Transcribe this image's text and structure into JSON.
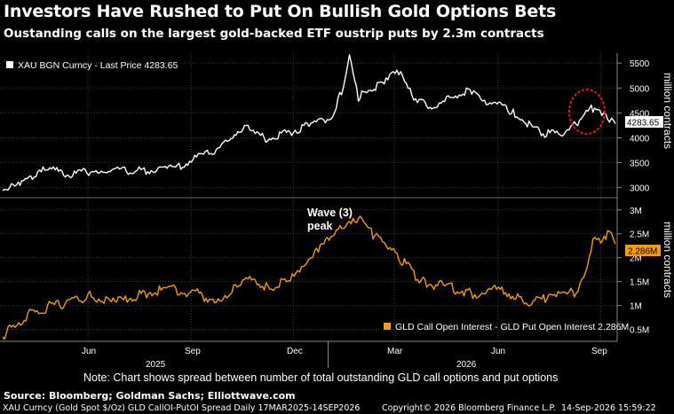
{
  "title": "Investors Have Rushed to Put On Bullish Gold Options Bets",
  "subtitle": "Oustanding calls on the largest gold-backed ETF oustrip puts by 2.3m contracts",
  "source": "Source: Bloomberg; Goldman Sachs; Elliottwave.com",
  "footer": {
    "left": "XAU Curncy (Gold Spot   $/Oz) GLD CallOI-PutOI Spread Daily 17MAR2025-14SEP2026",
    "center": "Copyright© 2026 Bloomberg Finance L.P.",
    "right": "14-Sep-2026 15:59:22"
  },
  "note": "Note: Chart shows spread between number of total outstanding GLD call options and put options",
  "colors": {
    "gold_line": "#ffffff",
    "spread_line": "#f39c12",
    "annotation_circle": "#e0182d",
    "background": "#000000"
  },
  "x_axis": {
    "month_labels": [
      "Jun",
      "Sep",
      "Dec",
      "Mar",
      "Jun",
      "Sep"
    ],
    "year_labels": [
      "2025",
      "2026"
    ]
  },
  "chart_data": [
    {
      "type": "line",
      "legend": "XAU BGN Curncy - Last Price 4283.65",
      "last_value_label": "4283.65",
      "ylabel": "million contracts",
      "yticks": [
        "5500",
        "5000",
        "4500",
        "4000",
        "3500",
        "3000"
      ],
      "ylim": [
        2850,
        5700
      ],
      "series": [
        {
          "name": "XAU BGN Curncy - Last Price",
          "x": [
            "2025-03-17",
            "2025-04-03",
            "2025-04-22",
            "2025-05-15",
            "2025-06-13",
            "2025-07-15",
            "2025-08-15",
            "2025-09-12",
            "2025-10-08",
            "2025-10-20",
            "2025-11-05",
            "2025-11-28",
            "2025-12-15",
            "2026-01-05",
            "2026-01-13",
            "2026-01-20",
            "2026-01-28",
            "2026-02-03",
            "2026-02-20",
            "2026-03-05",
            "2026-03-20",
            "2026-04-10",
            "2026-05-01",
            "2026-05-22",
            "2026-06-15",
            "2026-07-10",
            "2026-07-30",
            "2026-08-10",
            "2026-08-19",
            "2026-08-28",
            "2026-09-07",
            "2026-09-14"
          ],
          "values": [
            2990,
            3050,
            3420,
            3250,
            3370,
            3330,
            3380,
            3650,
            3950,
            4300,
            3980,
            4120,
            4250,
            4420,
            4950,
            5600,
            4800,
            4950,
            5100,
            5350,
            4700,
            4650,
            4950,
            4750,
            4500,
            4100,
            4050,
            4280,
            4500,
            4650,
            4400,
            4283.65
          ]
        }
      ]
    },
    {
      "type": "line",
      "legend": "GLD Call Open Interest - GLD Put Open Interest 2.286M",
      "last_value_label": "2.286M",
      "ylabel": "million contracts",
      "yticks": [
        "3M",
        "2.5M",
        "2M",
        "1.5M",
        "1M",
        "0.5M"
      ],
      "ylim": [
        0.25,
        3.2
      ],
      "annotations": [
        "Wave (3)",
        "peak"
      ],
      "series": [
        {
          "name": "GLD Call Open Interest - GLD Put Open Interest",
          "x": [
            "2025-03-17",
            "2025-03-28",
            "2025-04-15",
            "2025-05-10",
            "2025-06-01",
            "2025-06-25",
            "2025-07-20",
            "2025-08-15",
            "2025-09-05",
            "2025-09-25",
            "2025-10-12",
            "2025-10-28",
            "2025-11-10",
            "2025-11-25",
            "2025-12-10",
            "2025-12-25",
            "2026-01-05",
            "2026-01-15",
            "2026-01-28",
            "2026-02-10",
            "2026-02-25",
            "2026-03-10",
            "2026-03-25",
            "2026-04-15",
            "2026-05-10",
            "2026-06-05",
            "2026-06-25",
            "2026-07-15",
            "2026-07-30",
            "2026-08-10",
            "2026-08-20",
            "2026-08-25",
            "2026-09-01",
            "2026-09-07",
            "2026-09-14"
          ],
          "values": [
            0.35,
            0.6,
            0.9,
            1.05,
            1.2,
            1.05,
            1.25,
            1.35,
            1.25,
            1.1,
            1.45,
            1.55,
            1.35,
            1.5,
            1.75,
            2.2,
            2.5,
            2.6,
            2.8,
            2.5,
            2.15,
            1.9,
            1.5,
            1.4,
            1.25,
            1.35,
            1.05,
            1.15,
            1.2,
            1.3,
            1.7,
            2.35,
            2.3,
            2.55,
            2.286
          ]
        }
      ]
    }
  ]
}
